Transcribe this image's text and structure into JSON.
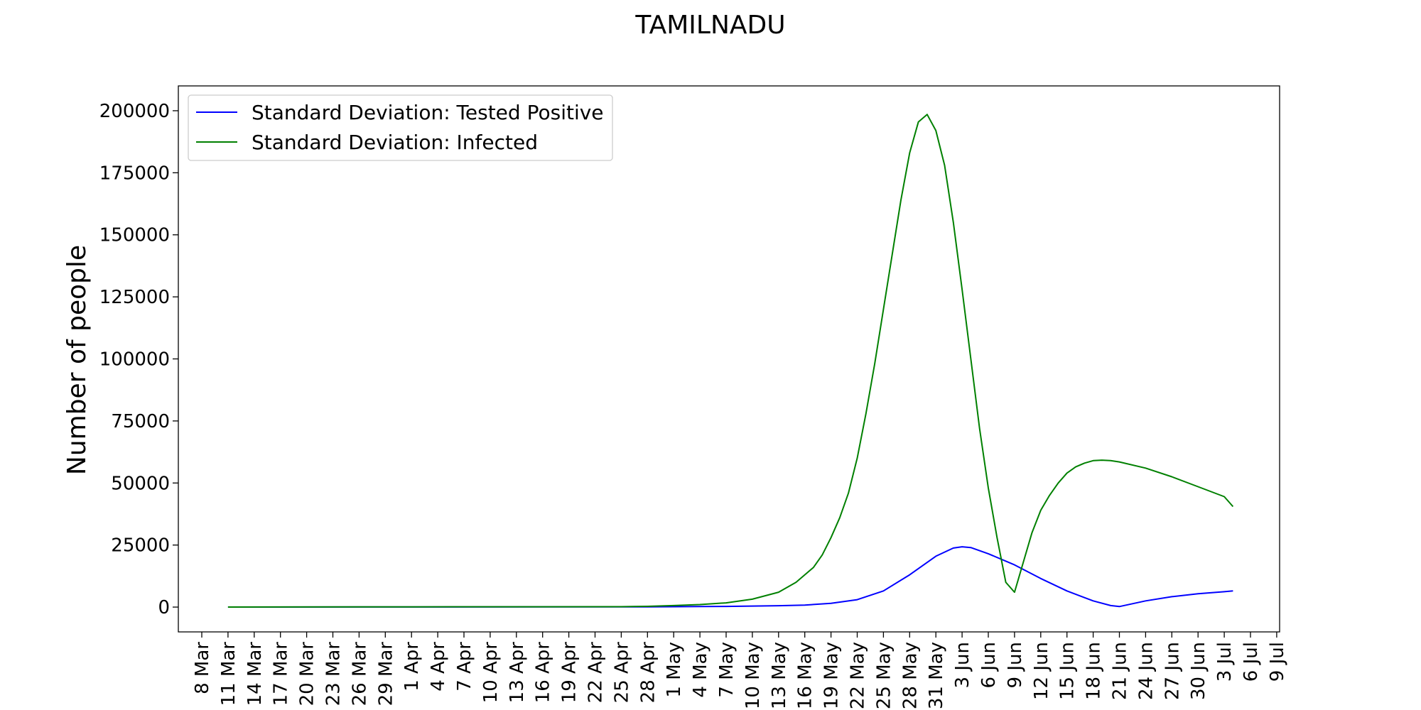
{
  "chart_data": {
    "type": "line",
    "title": "TAMILNADU",
    "xlabel": "",
    "ylabel": "Number of people",
    "x_ticks": [
      "8 Mar",
      "11 Mar",
      "14 Mar",
      "17 Mar",
      "20 Mar",
      "23 Mar",
      "26 Mar",
      "29 Mar",
      "1 Apr",
      "4 Apr",
      "7 Apr",
      "10 Apr",
      "13 Apr",
      "16 Apr",
      "19 Apr",
      "22 Apr",
      "25 Apr",
      "28 Apr",
      "1 May",
      "4 May",
      "7 May",
      "10 May",
      "13 May",
      "16 May",
      "19 May",
      "22 May",
      "25 May",
      "28 May",
      "31 May",
      "3 Jun",
      "6 Jun",
      "9 Jun",
      "12 Jun",
      "15 Jun",
      "18 Jun",
      "21 Jun",
      "24 Jun",
      "27 Jun",
      "30 Jun",
      "3 Jul",
      "6 Jul",
      "9 Jul"
    ],
    "y_ticks": [
      0,
      25000,
      50000,
      75000,
      100000,
      125000,
      150000,
      175000,
      200000
    ],
    "ylim": [
      -10000,
      210000
    ],
    "grid": false,
    "legend_position": "top-left",
    "series": [
      {
        "name": "Standard Deviation: Tested Positive",
        "color": "#0000ff",
        "points": [
          [
            "11 Mar",
            0
          ],
          [
            "1 Apr",
            50
          ],
          [
            "28 Apr",
            100
          ],
          [
            "1 May",
            150
          ],
          [
            "4 May",
            200
          ],
          [
            "7 May",
            280
          ],
          [
            "10 May",
            400
          ],
          [
            "13 May",
            550
          ],
          [
            "16 May",
            800
          ],
          [
            "19 May",
            1500
          ],
          [
            "22 May",
            3000
          ],
          [
            "25 May",
            6500
          ],
          [
            "28 May",
            13000
          ],
          [
            "31 May",
            20500
          ],
          [
            "2 Jun",
            23800
          ],
          [
            "3 Jun",
            24300
          ],
          [
            "4 Jun",
            24000
          ],
          [
            "6 Jun",
            21500
          ],
          [
            "9 Jun",
            17000
          ],
          [
            "12 Jun",
            11500
          ],
          [
            "15 Jun",
            6500
          ],
          [
            "18 Jun",
            2500
          ],
          [
            "20 Jun",
            600
          ],
          [
            "21 Jun",
            200
          ],
          [
            "24 Jun",
            2500
          ],
          [
            "27 Jun",
            4200
          ],
          [
            "30 Jun",
            5400
          ],
          [
            "3 Jul",
            6200
          ],
          [
            "4 Jul",
            6500
          ]
        ]
      },
      {
        "name": "Standard Deviation: Infected",
        "color": "#008000",
        "points": [
          [
            "11 Mar",
            0
          ],
          [
            "1 Apr",
            100
          ],
          [
            "25 Apr",
            150
          ],
          [
            "28 Apr",
            300
          ],
          [
            "1 May",
            600
          ],
          [
            "4 May",
            1000
          ],
          [
            "7 May",
            1700
          ],
          [
            "10 May",
            3200
          ],
          [
            "13 May",
            6000
          ],
          [
            "15 May",
            10000
          ],
          [
            "17 May",
            16000
          ],
          [
            "18 May",
            21000
          ],
          [
            "19 May",
            28000
          ],
          [
            "20 May",
            36000
          ],
          [
            "21 May",
            46000
          ],
          [
            "22 May",
            60000
          ],
          [
            "23 May",
            78000
          ],
          [
            "24 May",
            98000
          ],
          [
            "25 May",
            120000
          ],
          [
            "26 May",
            142000
          ],
          [
            "27 May",
            164000
          ],
          [
            "28 May",
            183000
          ],
          [
            "29 May",
            195500
          ],
          [
            "30 May",
            198500
          ],
          [
            "31 May",
            192000
          ],
          [
            "1 Jun",
            178000
          ],
          [
            "2 Jun",
            155000
          ],
          [
            "3 Jun",
            128000
          ],
          [
            "4 Jun",
            100000
          ],
          [
            "5 Jun",
            72000
          ],
          [
            "6 Jun",
            48000
          ],
          [
            "7 Jun",
            28000
          ],
          [
            "8 Jun",
            10000
          ],
          [
            "9 Jun",
            6000
          ],
          [
            "10 Jun",
            18000
          ],
          [
            "11 Jun",
            30000
          ],
          [
            "12 Jun",
            39000
          ],
          [
            "13 Jun",
            45000
          ],
          [
            "14 Jun",
            50000
          ],
          [
            "15 Jun",
            54000
          ],
          [
            "16 Jun",
            56500
          ],
          [
            "17 Jun",
            58000
          ],
          [
            "18 Jun",
            59000
          ],
          [
            "19 Jun",
            59200
          ],
          [
            "20 Jun",
            59000
          ],
          [
            "21 Jun",
            58500
          ],
          [
            "24 Jun",
            56000
          ],
          [
            "27 Jun",
            52500
          ],
          [
            "30 Jun",
            48500
          ],
          [
            "3 Jul",
            44500
          ],
          [
            "4 Jul",
            40500
          ]
        ]
      }
    ]
  }
}
